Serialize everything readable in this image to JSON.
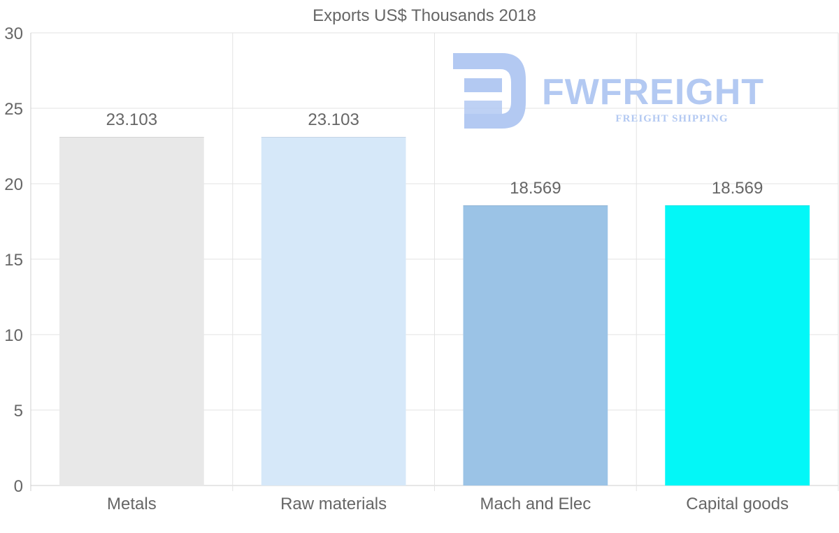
{
  "chart_data": {
    "type": "bar",
    "title": "Exports US$ Thousands 2018",
    "categories": [
      "Metals",
      "Raw materials",
      "Mach and Elec",
      "Capital goods"
    ],
    "values": [
      23.103,
      23.103,
      18.569,
      18.569
    ],
    "data_labels": [
      "23.103",
      "23.103",
      "18.569",
      "18.569"
    ],
    "colors": [
      "#e8e8e8",
      "#d6e8f9",
      "#9bc3e6",
      "#03f7f7"
    ],
    "ylim": [
      0,
      30
    ],
    "yticks": [
      0,
      5,
      10,
      15,
      20,
      25,
      30
    ],
    "xlabel": "",
    "ylabel": "",
    "grid": true,
    "legend": "none"
  },
  "watermark": {
    "brand": "FWFREIGHT",
    "tagline": "FREIGHT SHIPPING",
    "color": "#b3c9f2"
  }
}
